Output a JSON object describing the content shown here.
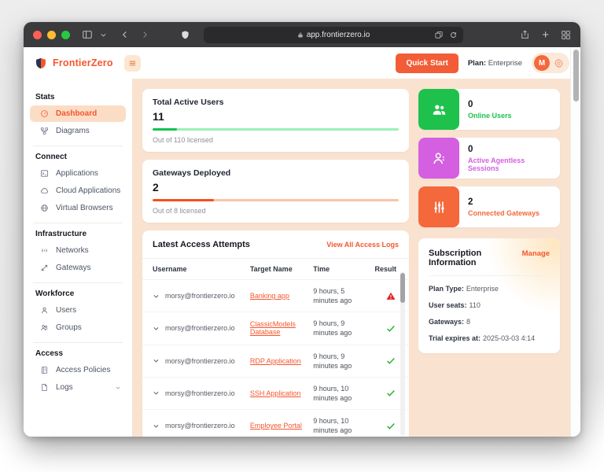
{
  "browser": {
    "url": "app.frontierzero.io"
  },
  "header": {
    "brand": "FrontierZero",
    "quick_start_label": "Quick Start",
    "plan_label": "Plan:",
    "plan_value": "Enterprise",
    "avatar_initial": "M"
  },
  "sidebar": {
    "sections": [
      {
        "label": "Stats",
        "items": [
          {
            "label": "Dashboard",
            "active": true
          },
          {
            "label": "Diagrams"
          }
        ]
      },
      {
        "label": "Connect",
        "items": [
          {
            "label": "Applications"
          },
          {
            "label": "Cloud Applications"
          },
          {
            "label": "Virtual Browsers"
          }
        ]
      },
      {
        "label": "Infrastructure",
        "items": [
          {
            "label": "Networks"
          },
          {
            "label": "Gateways"
          }
        ]
      },
      {
        "label": "Workforce",
        "items": [
          {
            "label": "Users"
          },
          {
            "label": "Groups"
          }
        ]
      },
      {
        "label": "Access",
        "items": [
          {
            "label": "Access Policies"
          },
          {
            "label": "Logs",
            "expandable": true
          }
        ]
      }
    ]
  },
  "metrics": [
    {
      "title": "Total Active Users",
      "value": "11",
      "caption": "Out of 110 licensed",
      "pct": 10,
      "fill_color": "#15c152",
      "track_color": "#9cf0ba"
    },
    {
      "title": "Gateways Deployed",
      "value": "2",
      "caption": "Out of 8 licensed",
      "pct": 25,
      "fill_color": "#f4511e",
      "track_color": "#fbc3a8"
    }
  ],
  "stats": [
    {
      "value": "0",
      "label": "Online Users",
      "color": "#1fc14d",
      "icon": "people-icon"
    },
    {
      "value": "0",
      "label": "Active Agentless Sessions",
      "color": "#d45fe0",
      "icon": "agentless-person-icon"
    },
    {
      "value": "2",
      "label": "Connected Gateways",
      "color": "#f4683c",
      "icon": "equalizer-icon"
    }
  ],
  "access": {
    "title": "Latest Access Attempts",
    "view_all_label": "View All Access Logs",
    "columns": [
      "Username",
      "Target Name",
      "Time",
      "Result"
    ],
    "rows": [
      {
        "username": "morsy@frontierzero.io",
        "target": "Banking app",
        "time": "9 hours, 5 minutes ago",
        "result": "warning"
      },
      {
        "username": "morsy@frontierzero.io",
        "target": "ClassicModels Database",
        "time": "9 hours, 9 minutes ago",
        "result": "success"
      },
      {
        "username": "morsy@frontierzero.io",
        "target": "RDP Application",
        "time": "9 hours, 9 minutes ago",
        "result": "success"
      },
      {
        "username": "morsy@frontierzero.io",
        "target": "SSH Application",
        "time": "9 hours, 10 minutes ago",
        "result": "success"
      },
      {
        "username": "morsy@frontierzero.io",
        "target": "Employee Portal",
        "time": "9 hours, 10 minutes ago",
        "result": "success"
      }
    ]
  },
  "subscription": {
    "title": "Subscription Information",
    "manage_label": "Manage",
    "fields": [
      {
        "label": "Plan Type:",
        "value": "Enterprise"
      },
      {
        "label": "User seats:",
        "value": "110"
      },
      {
        "label": "Gateways:",
        "value": "8"
      },
      {
        "label": "Trial expires at:",
        "value": "2025-03-03 4:14"
      }
    ]
  },
  "colors": {
    "accent_orange": "#f4562d",
    "main_background": "#f9e3d0",
    "active_item_background": "#fbddc5",
    "success_green": "#1fc14d",
    "warning_red": "#e02424",
    "agentless_purple": "#d45fe0",
    "gateway_orange": "#f4683c"
  }
}
